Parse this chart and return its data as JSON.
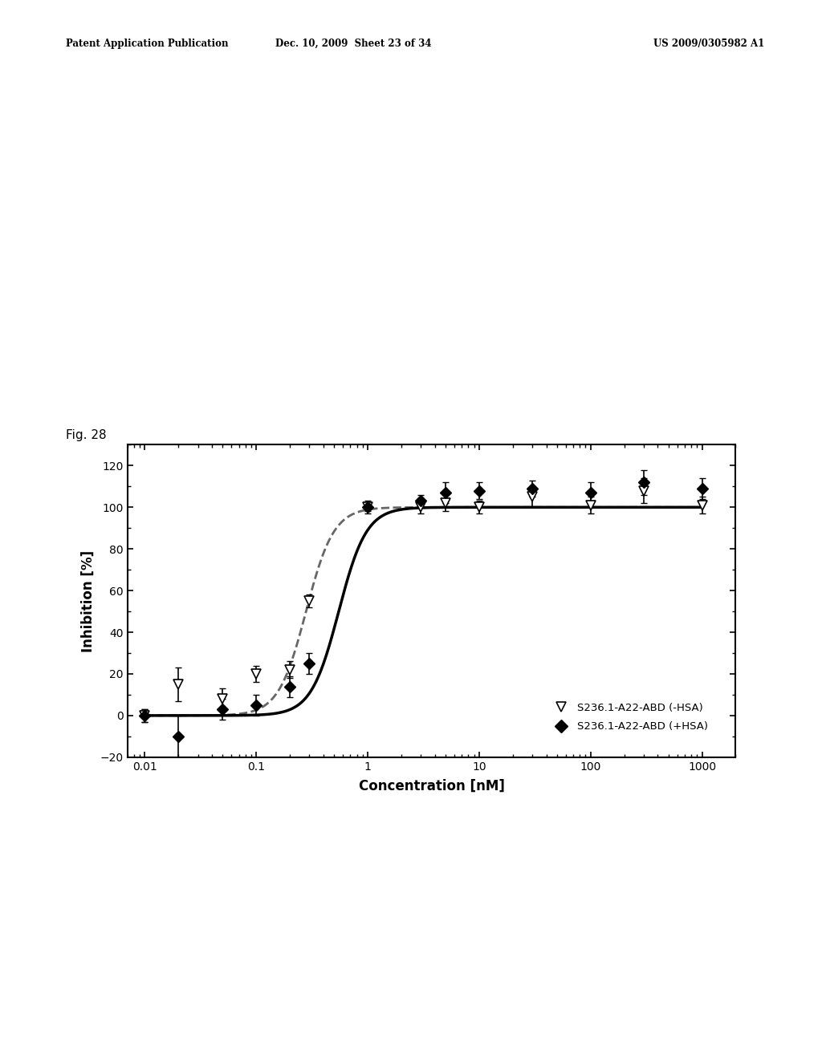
{
  "header_left": "Patent Application Publication",
  "header_mid": "Dec. 10, 2009  Sheet 23 of 34",
  "header_right": "US 2009/0305982 A1",
  "fig_label": "Fig. 28",
  "xlabel": "Concentration [nM]",
  "ylabel": "Inhibition [%]",
  "ylim": [
    -20,
    130
  ],
  "yticks": [
    -20,
    0,
    20,
    40,
    60,
    80,
    100,
    120
  ],
  "xtick_labels": [
    "0.01",
    "0.1",
    "1",
    "10",
    "100",
    "1000"
  ],
  "xtick_vals": [
    0.01,
    0.1,
    1,
    10,
    100,
    1000
  ],
  "series1_label": "S236.1-A22-ABD (-HSA)",
  "series1_x": [
    0.01,
    0.02,
    0.05,
    0.1,
    0.2,
    0.3,
    1.0,
    3.0,
    5.0,
    10.0,
    30.0,
    100.0,
    300.0,
    1000.0
  ],
  "series1_y": [
    0.0,
    15.0,
    8.0,
    20.0,
    22.0,
    55.0,
    100.0,
    100.0,
    102.0,
    100.0,
    105.0,
    101.0,
    108.0,
    101.0
  ],
  "series1_yerr": [
    3.0,
    8.0,
    5.0,
    4.0,
    4.0,
    3.0,
    2.0,
    3.0,
    4.0,
    3.0,
    5.0,
    4.0,
    6.0,
    4.0
  ],
  "series1_ec50": 0.28,
  "series1_hill": 3.5,
  "series2_label": "S236.1-A22-ABD (+HSA)",
  "series2_x": [
    0.01,
    0.02,
    0.05,
    0.1,
    0.2,
    0.3,
    1.0,
    3.0,
    5.0,
    10.0,
    30.0,
    100.0,
    300.0,
    1000.0
  ],
  "series2_y": [
    0.0,
    -10.0,
    3.0,
    5.0,
    14.0,
    25.0,
    100.0,
    103.0,
    107.0,
    108.0,
    109.0,
    107.0,
    112.0,
    109.0
  ],
  "series2_yerr": [
    3.0,
    10.0,
    5.0,
    5.0,
    5.0,
    5.0,
    3.0,
    3.0,
    5.0,
    4.0,
    4.0,
    5.0,
    6.0,
    5.0
  ],
  "series2_ec50": 0.55,
  "series2_hill": 3.5,
  "color1": "#666666",
  "color2": "#000000",
  "background_color": "#ffffff"
}
